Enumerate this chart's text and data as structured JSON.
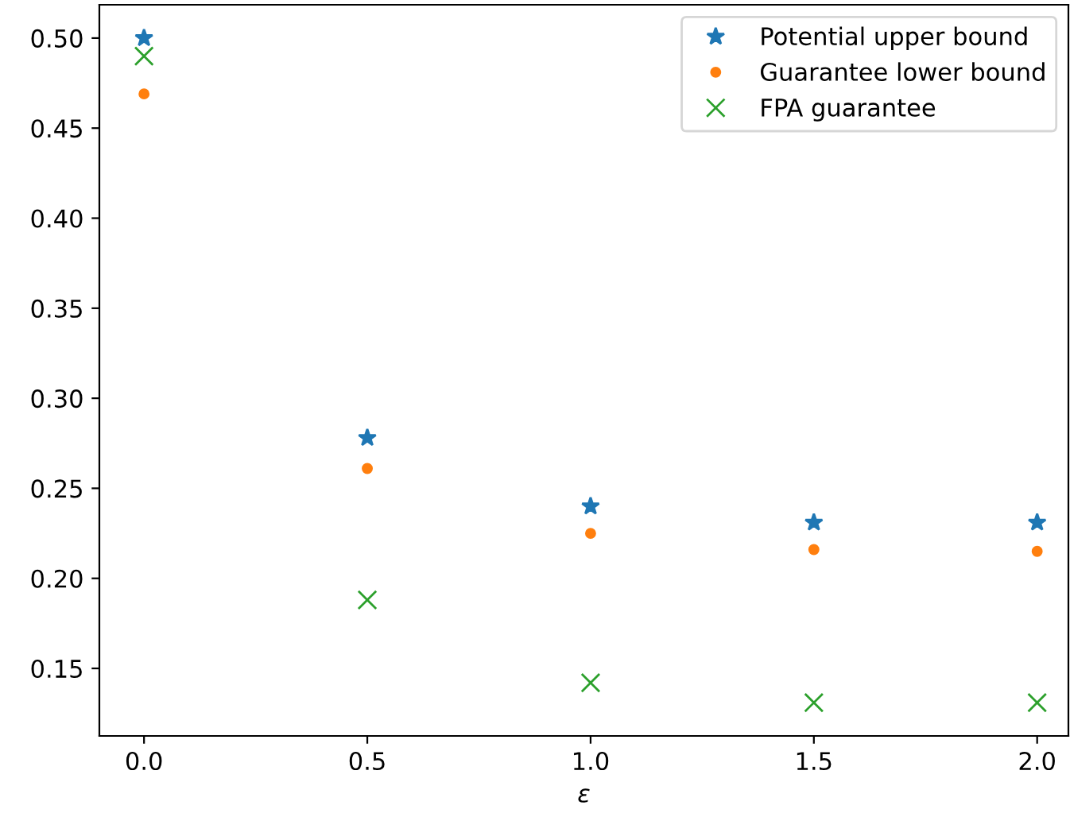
{
  "chart_data": {
    "type": "scatter",
    "xlabel": "ε",
    "x": [
      0.0,
      0.5,
      1.0,
      1.5,
      2.0
    ],
    "series": [
      {
        "name": "Potential upper bound",
        "color": "#1f77b4",
        "marker": "star",
        "values": [
          0.5,
          0.278,
          0.24,
          0.231,
          0.231
        ]
      },
      {
        "name": "Guarantee lower bound",
        "color": "#ff7f0e",
        "marker": "circle",
        "values": [
          0.469,
          0.261,
          0.225,
          0.216,
          0.215
        ]
      },
      {
        "name": "FPA guarantee",
        "color": "#2ca02c",
        "marker": "cross",
        "values": [
          0.49,
          0.188,
          0.142,
          0.131,
          0.131
        ]
      }
    ],
    "xlim": [
      -0.1,
      2.07
    ],
    "ylim": [
      0.1125,
      0.5185
    ],
    "xticks": [
      {
        "value": 0.0,
        "label": "0.0"
      },
      {
        "value": 0.5,
        "label": "0.5"
      },
      {
        "value": 1.0,
        "label": "1.0"
      },
      {
        "value": 1.5,
        "label": "1.5"
      },
      {
        "value": 2.0,
        "label": "2.0"
      }
    ],
    "yticks": [
      {
        "value": 0.15,
        "label": "0.15"
      },
      {
        "value": 0.2,
        "label": "0.20"
      },
      {
        "value": 0.25,
        "label": "0.25"
      },
      {
        "value": 0.3,
        "label": "0.30"
      },
      {
        "value": 0.35,
        "label": "0.35"
      },
      {
        "value": 0.4,
        "label": "0.40"
      },
      {
        "value": 0.45,
        "label": "0.45"
      },
      {
        "value": 0.5,
        "label": "0.50"
      }
    ],
    "grid": false,
    "legend": "top right"
  }
}
